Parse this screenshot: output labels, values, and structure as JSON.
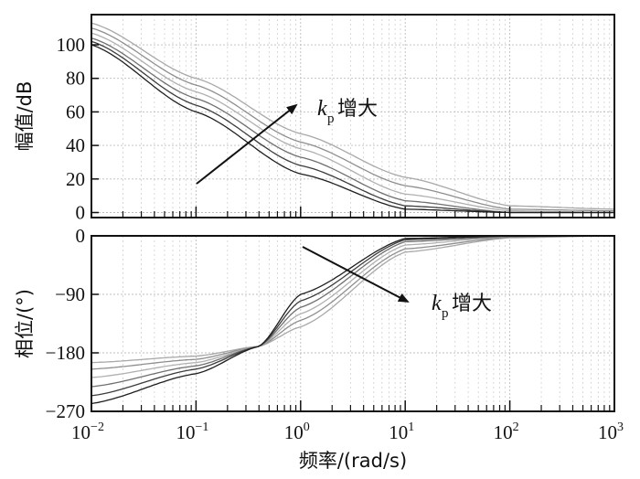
{
  "chart_data": [
    {
      "type": "line",
      "xlabel": "频率/(rad/s)",
      "ylabel": "幅值/dB",
      "x_scale": "log",
      "xlim": [
        0.01,
        1000
      ],
      "ylim": [
        -3,
        118
      ],
      "yticks": [
        0,
        20,
        40,
        60,
        80,
        100
      ],
      "xtick_labels": [
        {
          "base": "10",
          "exp": "−2"
        },
        {
          "base": "10",
          "exp": "−1"
        },
        {
          "base": "10",
          "exp": "0"
        },
        {
          "base": "10",
          "exp": "1"
        },
        {
          "base": "10",
          "exp": "2"
        },
        {
          "base": "10",
          "exp": "3"
        }
      ],
      "grid": true,
      "annotation": {
        "symbol": "k",
        "subscript": "p",
        "text": "增大"
      },
      "x": [
        0.01,
        0.1,
        1,
        10,
        100,
        1000
      ],
      "series": [
        {
          "values": [
            113,
            80,
            47,
            21,
            4,
            2
          ],
          "color": "#a8a8a8"
        },
        {
          "values": [
            110,
            76,
            42,
            16,
            2,
            1
          ],
          "color": "#8e8e8e"
        },
        {
          "values": [
            107,
            72,
            38,
            11,
            1,
            0
          ],
          "color": "#b0b0b0"
        },
        {
          "values": [
            104,
            68,
            33,
            7,
            0,
            0
          ],
          "color": "#6f6f6f"
        },
        {
          "values": [
            102,
            64,
            28,
            4,
            0,
            0
          ],
          "color": "#3c3c3c"
        },
        {
          "values": [
            100,
            60,
            23,
            2,
            0,
            0
          ],
          "color": "#1e1e1e"
        }
      ]
    },
    {
      "type": "line",
      "xlabel": "频率/(rad/s)",
      "ylabel": "相位/(°)",
      "x_scale": "log",
      "xlim": [
        0.01,
        1000
      ],
      "ylim": [
        -270,
        0
      ],
      "yticks": [
        0,
        -90,
        -180,
        -270
      ],
      "ytick_labels": [
        "0",
        "−90",
        "−180",
        "−270"
      ],
      "grid": true,
      "annotation": {
        "symbol": "k",
        "subscript": "p",
        "text": "增大"
      },
      "x": [
        0.01,
        0.1,
        0.4,
        1,
        10,
        100,
        1000
      ],
      "series": [
        {
          "values": [
            -195,
            -185,
            -170,
            -140,
            -25,
            -3,
            0
          ],
          "color": "#a8a8a8"
        },
        {
          "values": [
            -205,
            -190,
            -170,
            -130,
            -20,
            -2,
            0
          ],
          "color": "#8e8e8e"
        },
        {
          "values": [
            -218,
            -195,
            -170,
            -120,
            -14,
            -1,
            0
          ],
          "color": "#b0b0b0"
        },
        {
          "values": [
            -232,
            -200,
            -170,
            -110,
            -9,
            -1,
            0
          ],
          "color": "#6f6f6f"
        },
        {
          "values": [
            -246,
            -205,
            -170,
            -100,
            -6,
            0,
            0
          ],
          "color": "#3c3c3c"
        },
        {
          "values": [
            -258,
            -212,
            -170,
            -90,
            -4,
            0,
            0
          ],
          "color": "#1e1e1e"
        }
      ]
    }
  ]
}
